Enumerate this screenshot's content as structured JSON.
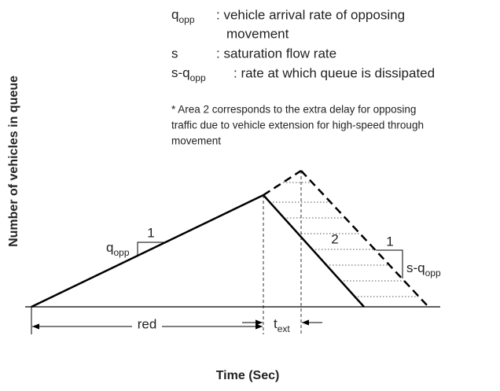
{
  "legend": [
    {
      "symbol": "q",
      "subscript": "opp",
      "description_lines": [
        ": vehicle arrival rate of opposing",
        "movement"
      ]
    },
    {
      "symbol": "s",
      "description_lines": [
        ": saturation flow rate"
      ]
    },
    {
      "symbol": "s-q",
      "subscript": "opp",
      "description_lines": [
        ": rate at which queue is dissipated"
      ]
    }
  ],
  "note_lines": [
    "* Area 2 corresponds to the extra delay for opposing",
    "traffic due to vehicle extension for high-speed through",
    "movement"
  ],
  "y_axis_label": "Number of vehicles in queue",
  "x_axis_label": "Time (Sec)",
  "labels": {
    "arrival_rate": {
      "text": "q",
      "subscript": "opp"
    },
    "arrival_slope": "1",
    "area": "2",
    "dissipation_slope": "1",
    "dissipation_rate": {
      "text": "s-q",
      "subscript": "opp"
    },
    "red": "red",
    "extension": {
      "text": "t",
      "subscript": "ext"
    }
  }
}
